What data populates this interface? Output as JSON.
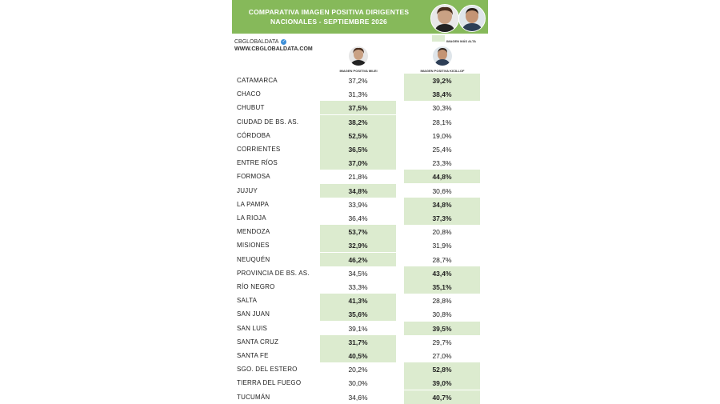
{
  "header": {
    "title_line1": "COMPARATIVA IMAGEN POSITIVA DIRIGENTES",
    "title_line2": "NACIONALES - SEPTIEMBRE 2026",
    "background": "#86b95a"
  },
  "brand": {
    "handle": "CBGLOBALDATA",
    "url": "WWW.CBGLOBALDATA.COM"
  },
  "legend": {
    "label": "IMAGEN MÁS ALTA",
    "color": "#dcebcf"
  },
  "columns": {
    "a_label": "IMAGEN POSITIVA MILEI",
    "b_label": "IMAGEN POSITIVA KICILLOF"
  },
  "chart_data": {
    "type": "table",
    "columns": [
      "IMAGEN POSITIVA MILEI",
      "IMAGEN POSITIVA KICILLOF"
    ],
    "highlight_color": "#dcebcf",
    "rows": [
      {
        "province": "CATAMARCA",
        "a": "37,2%",
        "b": "39,2%",
        "hi": "b"
      },
      {
        "province": "CHACO",
        "a": "31,3%",
        "b": "38,4%",
        "hi": "b"
      },
      {
        "province": "CHUBUT",
        "a": "37,5%",
        "b": "30,3%",
        "hi": "a"
      },
      {
        "province": "CIUDAD DE BS. AS.",
        "a": "38,2%",
        "b": "28,1%",
        "hi": "a"
      },
      {
        "province": "CÓRDOBA",
        "a": "52,5%",
        "b": "19,0%",
        "hi": "a"
      },
      {
        "province": "CORRIENTES",
        "a": "36,5%",
        "b": "25,4%",
        "hi": "a"
      },
      {
        "province": "ENTRE RÍOS",
        "a": "37,0%",
        "b": "23,3%",
        "hi": "a"
      },
      {
        "province": "FORMOSA",
        "a": "21,8%",
        "b": "44,8%",
        "hi": "b"
      },
      {
        "province": "JUJUY",
        "a": "34,8%",
        "b": "30,6%",
        "hi": "a"
      },
      {
        "province": "LA PAMPA",
        "a": "33,9%",
        "b": "34,8%",
        "hi": "b"
      },
      {
        "province": "LA RIOJA",
        "a": "36,4%",
        "b": "37,3%",
        "hi": "b"
      },
      {
        "province": "MENDOZA",
        "a": "53,7%",
        "b": "20,8%",
        "hi": "a"
      },
      {
        "province": "MISIONES",
        "a": "32,9%",
        "b": "31,9%",
        "hi": "a"
      },
      {
        "province": "NEUQUÉN",
        "a": "46,2%",
        "b": "28,7%",
        "hi": "a"
      },
      {
        "province": "PROVINCIA DE BS. AS.",
        "a": "34,5%",
        "b": "43,4%",
        "hi": "b"
      },
      {
        "province": "RÍO NEGRO",
        "a": "33,3%",
        "b": "35,1%",
        "hi": "b"
      },
      {
        "province": "SALTA",
        "a": "41,3%",
        "b": "28,8%",
        "hi": "a"
      },
      {
        "province": "SAN JUAN",
        "a": "35,6%",
        "b": "30,8%",
        "hi": "a"
      },
      {
        "province": "SAN LUIS",
        "a": "39,1%",
        "b": "39,5%",
        "hi": "b"
      },
      {
        "province": "SANTA CRUZ",
        "a": "31,7%",
        "b": "29,7%",
        "hi": "a"
      },
      {
        "province": "SANTA FE",
        "a": "40,5%",
        "b": "27,0%",
        "hi": "a"
      },
      {
        "province": "SGO. DEL ESTERO",
        "a": "20,2%",
        "b": "52,8%",
        "hi": "b"
      },
      {
        "province": "TIERRA DEL FUEGO",
        "a": "30,0%",
        "b": "39,0%",
        "hi": "b"
      },
      {
        "province": "TUCUMÁN",
        "a": "34,6%",
        "b": "40,7%",
        "hi": "b"
      }
    ]
  }
}
